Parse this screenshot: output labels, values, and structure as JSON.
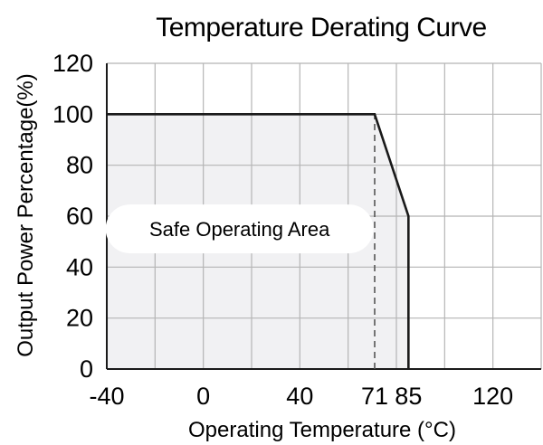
{
  "chart_data": {
    "type": "area",
    "title": "Temperature Derating Curve",
    "xlabel": "Operating Temperature (°C)",
    "ylabel": "Output Power Percentage(%)",
    "xlim": [
      -40,
      140
    ],
    "ylim": [
      0,
      120
    ],
    "x_ticks": [
      -40,
      0,
      40,
      71,
      85,
      120
    ],
    "x_tick_labels": [
      "-40",
      "0",
      "40",
      "71",
      "85",
      "120"
    ],
    "y_ticks": [
      0,
      20,
      40,
      60,
      80,
      100,
      120
    ],
    "y_tick_labels": [
      "0",
      "20",
      "40",
      "60",
      "80",
      "100",
      "120"
    ],
    "x_gridlines": [
      -40,
      -20,
      0,
      20,
      40,
      60,
      80,
      100,
      120,
      140
    ],
    "y_gridlines": [
      0,
      20,
      40,
      60,
      80,
      100,
      120
    ],
    "grid": true,
    "series": [
      {
        "x": [
          -40,
          71,
          85,
          85
        ],
        "y": [
          100,
          100,
          60,
          0
        ]
      }
    ],
    "reference_line": {
      "x": 71,
      "y_from": 0,
      "y_to": 100,
      "style": "dashed"
    },
    "annotation": {
      "text": "Safe Operating Area",
      "x": 15,
      "y": 55
    },
    "colors": {
      "area_fill": "#f1f1f3",
      "line": "#1a1a1a",
      "grid": "#b5b5b5"
    }
  }
}
